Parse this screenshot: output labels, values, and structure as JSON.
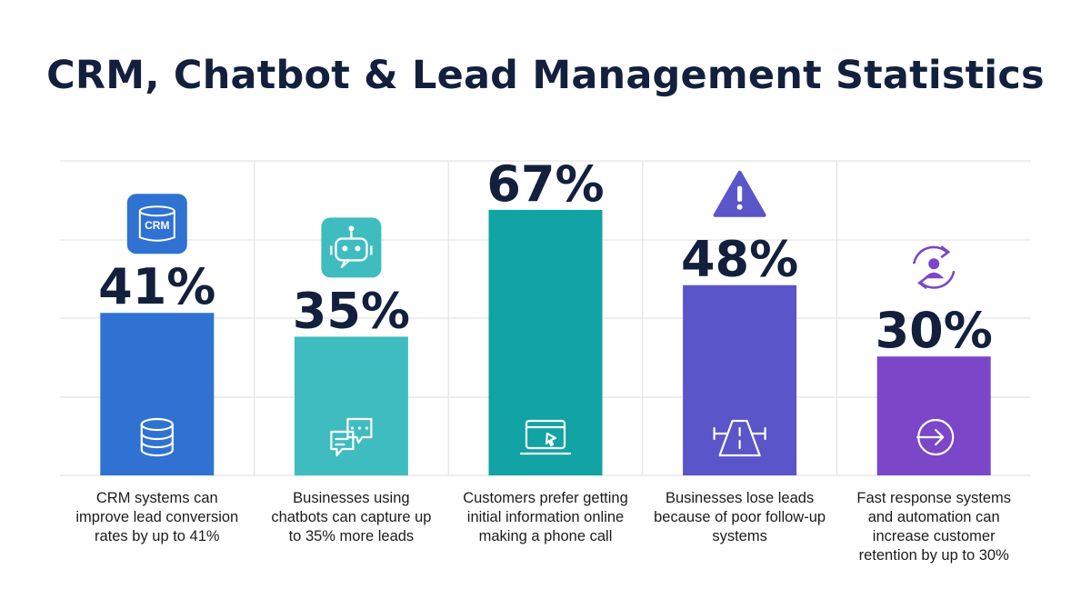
{
  "chart_data": {
    "type": "bar",
    "title": "CRM, Chatbot & Lead Management Statistics",
    "xlabel": "",
    "ylabel": "",
    "ylim": [
      0,
      100
    ],
    "grid": true,
    "categories": [
      "CRM systems can improve lead conversion rates by up to 41%",
      "Businesses using chatbots can capture up to 35% more leads",
      "Customers prefer getting initial information online making a phone call",
      "Businesses lose leads because of poor follow-up systems",
      "Fast response systems and automation can increase customer retention by up to 30%"
    ],
    "values": [
      41,
      35,
      67,
      48,
      30
    ],
    "value_labels": [
      "41%",
      "35%",
      "67%",
      "48%",
      "30%"
    ],
    "bar_colors": [
      "#2f72d2",
      "#3fbcbf",
      "#12a3a4",
      "#5a55c9",
      "#7c46c8"
    ],
    "top_icons": [
      "crm-badge-icon",
      "robot-icon",
      "",
      "warning-icon",
      "user-sync-icon"
    ],
    "top_icon_text": [
      "CRM",
      "",
      "",
      "!",
      ""
    ],
    "bar_icons": [
      "database-icon",
      "chat-bubbles-icon",
      "laptop-cursor-icon",
      "road-warning-icon",
      "arrow-enter-icon"
    ]
  },
  "colors": {
    "title": "#13203d",
    "value_label": "#13203d",
    "grid": "#e3e3e3",
    "bar_icon_stroke": "#ffffff"
  }
}
